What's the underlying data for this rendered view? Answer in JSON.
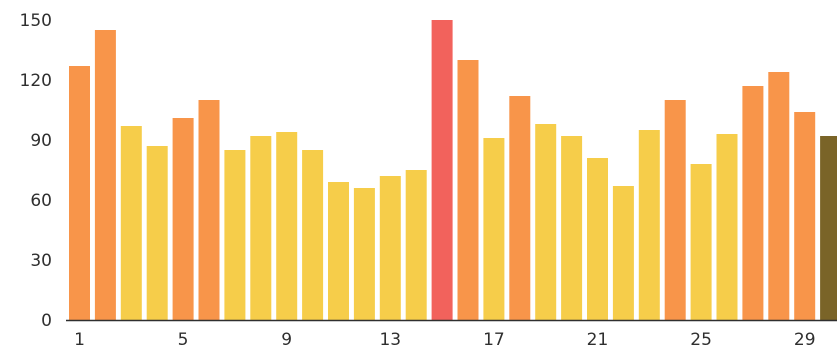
{
  "chart_data": {
    "type": "bar",
    "title": "",
    "xlabel": "",
    "ylabel": "",
    "ylim": [
      0,
      150
    ],
    "y_ticks": [
      0,
      30,
      60,
      90,
      120,
      150
    ],
    "x_tick_labels": [
      "1",
      "5",
      "9",
      "13",
      "17",
      "21",
      "25",
      "29"
    ],
    "categories": [
      "1",
      "2",
      "3",
      "4",
      "5",
      "6",
      "7",
      "8",
      "9",
      "10",
      "11",
      "12",
      "13",
      "14",
      "15",
      "16",
      "17",
      "18",
      "19",
      "20",
      "21",
      "22",
      "23",
      "24",
      "25",
      "26",
      "27",
      "28",
      "29",
      "30"
    ],
    "values": [
      127,
      145,
      97,
      87,
      101,
      110,
      85,
      92,
      94,
      85,
      69,
      66,
      72,
      75,
      150,
      130,
      91,
      112,
      98,
      92,
      81,
      67,
      95,
      110,
      78,
      93,
      117,
      124,
      104,
      92
    ],
    "grid": false,
    "legend": "none",
    "colors": {
      "low": "#f6cd4a",
      "mid": "#f8954a",
      "max": "#f2625c",
      "last": "#7a6428",
      "axis": "#2f2f2f"
    },
    "color_thresholds": {
      "mid_at_or_above": 100,
      "max_value": 150
    }
  }
}
